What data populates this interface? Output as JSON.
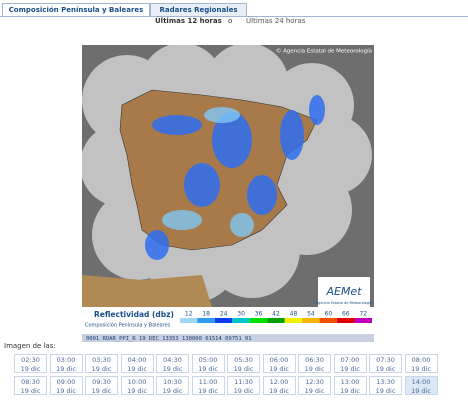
{
  "tabs": [
    {
      "label": "Composición Península y Baleares",
      "active": true
    },
    {
      "label": "Radares Regionales",
      "active": false
    }
  ],
  "range": {
    "option1": "Últimas 12 horas",
    "separator": "o",
    "option2": "Últimas 24 horas"
  },
  "map": {
    "copyright": "© Agencia Estatal de Meteorología",
    "logo": {
      "name": "AEMet",
      "subtitle": "Agencia Estatal de Meteorología"
    },
    "legend": {
      "title": "Reflectividad (dbz)",
      "subtitle": "Composición Península y Baleares",
      "levels": [
        "12",
        "18",
        "24",
        "30",
        "36",
        "42",
        "48",
        "54",
        "60",
        "66",
        "72"
      ],
      "colors": [
        "#9fd7f5",
        "#2f9cf2",
        "#0a3cf0",
        "#00c8c8",
        "#00e000",
        "#00a000",
        "#f0f000",
        "#f5b400",
        "#f05000",
        "#e00000",
        "#c000c0"
      ]
    },
    "status": "0001 RDAR_PPI_R   19 DEC 13353 130000 01514 09751 01"
  },
  "times_label": "Imagen de las:",
  "times": [
    [
      {
        "time": "02:30",
        "date": "19 dic"
      },
      {
        "time": "03:00",
        "date": "19 dic"
      },
      {
        "time": "03:30",
        "date": "19 dic"
      },
      {
        "time": "04:00",
        "date": "19 dic"
      },
      {
        "time": "04:30",
        "date": "19 dic"
      },
      {
        "time": "05:00",
        "date": "19 dic"
      },
      {
        "time": "05:30",
        "date": "19 dic"
      },
      {
        "time": "06:00",
        "date": "19 dic"
      },
      {
        "time": "06:30",
        "date": "19 dic"
      },
      {
        "time": "07:00",
        "date": "19 dic"
      },
      {
        "time": "07:30",
        "date": "19 dic"
      },
      {
        "time": "08:00",
        "date": "19 dic"
      }
    ],
    [
      {
        "time": "08:30",
        "date": "19 dic"
      },
      {
        "time": "09:00",
        "date": "19 dic"
      },
      {
        "time": "09:30",
        "date": "19 dic"
      },
      {
        "time": "10:00",
        "date": "19 dic"
      },
      {
        "time": "10:30",
        "date": "19 dic"
      },
      {
        "time": "11:00",
        "date": "19 dic"
      },
      {
        "time": "11:30",
        "date": "19 dic"
      },
      {
        "time": "12:00",
        "date": "19 dic"
      },
      {
        "time": "12:30",
        "date": "19 dic"
      },
      {
        "time": "13:00",
        "date": "19 dic"
      },
      {
        "time": "13:30",
        "date": "19 dic"
      },
      {
        "time": "14:00",
        "date": "19 dic",
        "selected": true
      }
    ]
  ]
}
